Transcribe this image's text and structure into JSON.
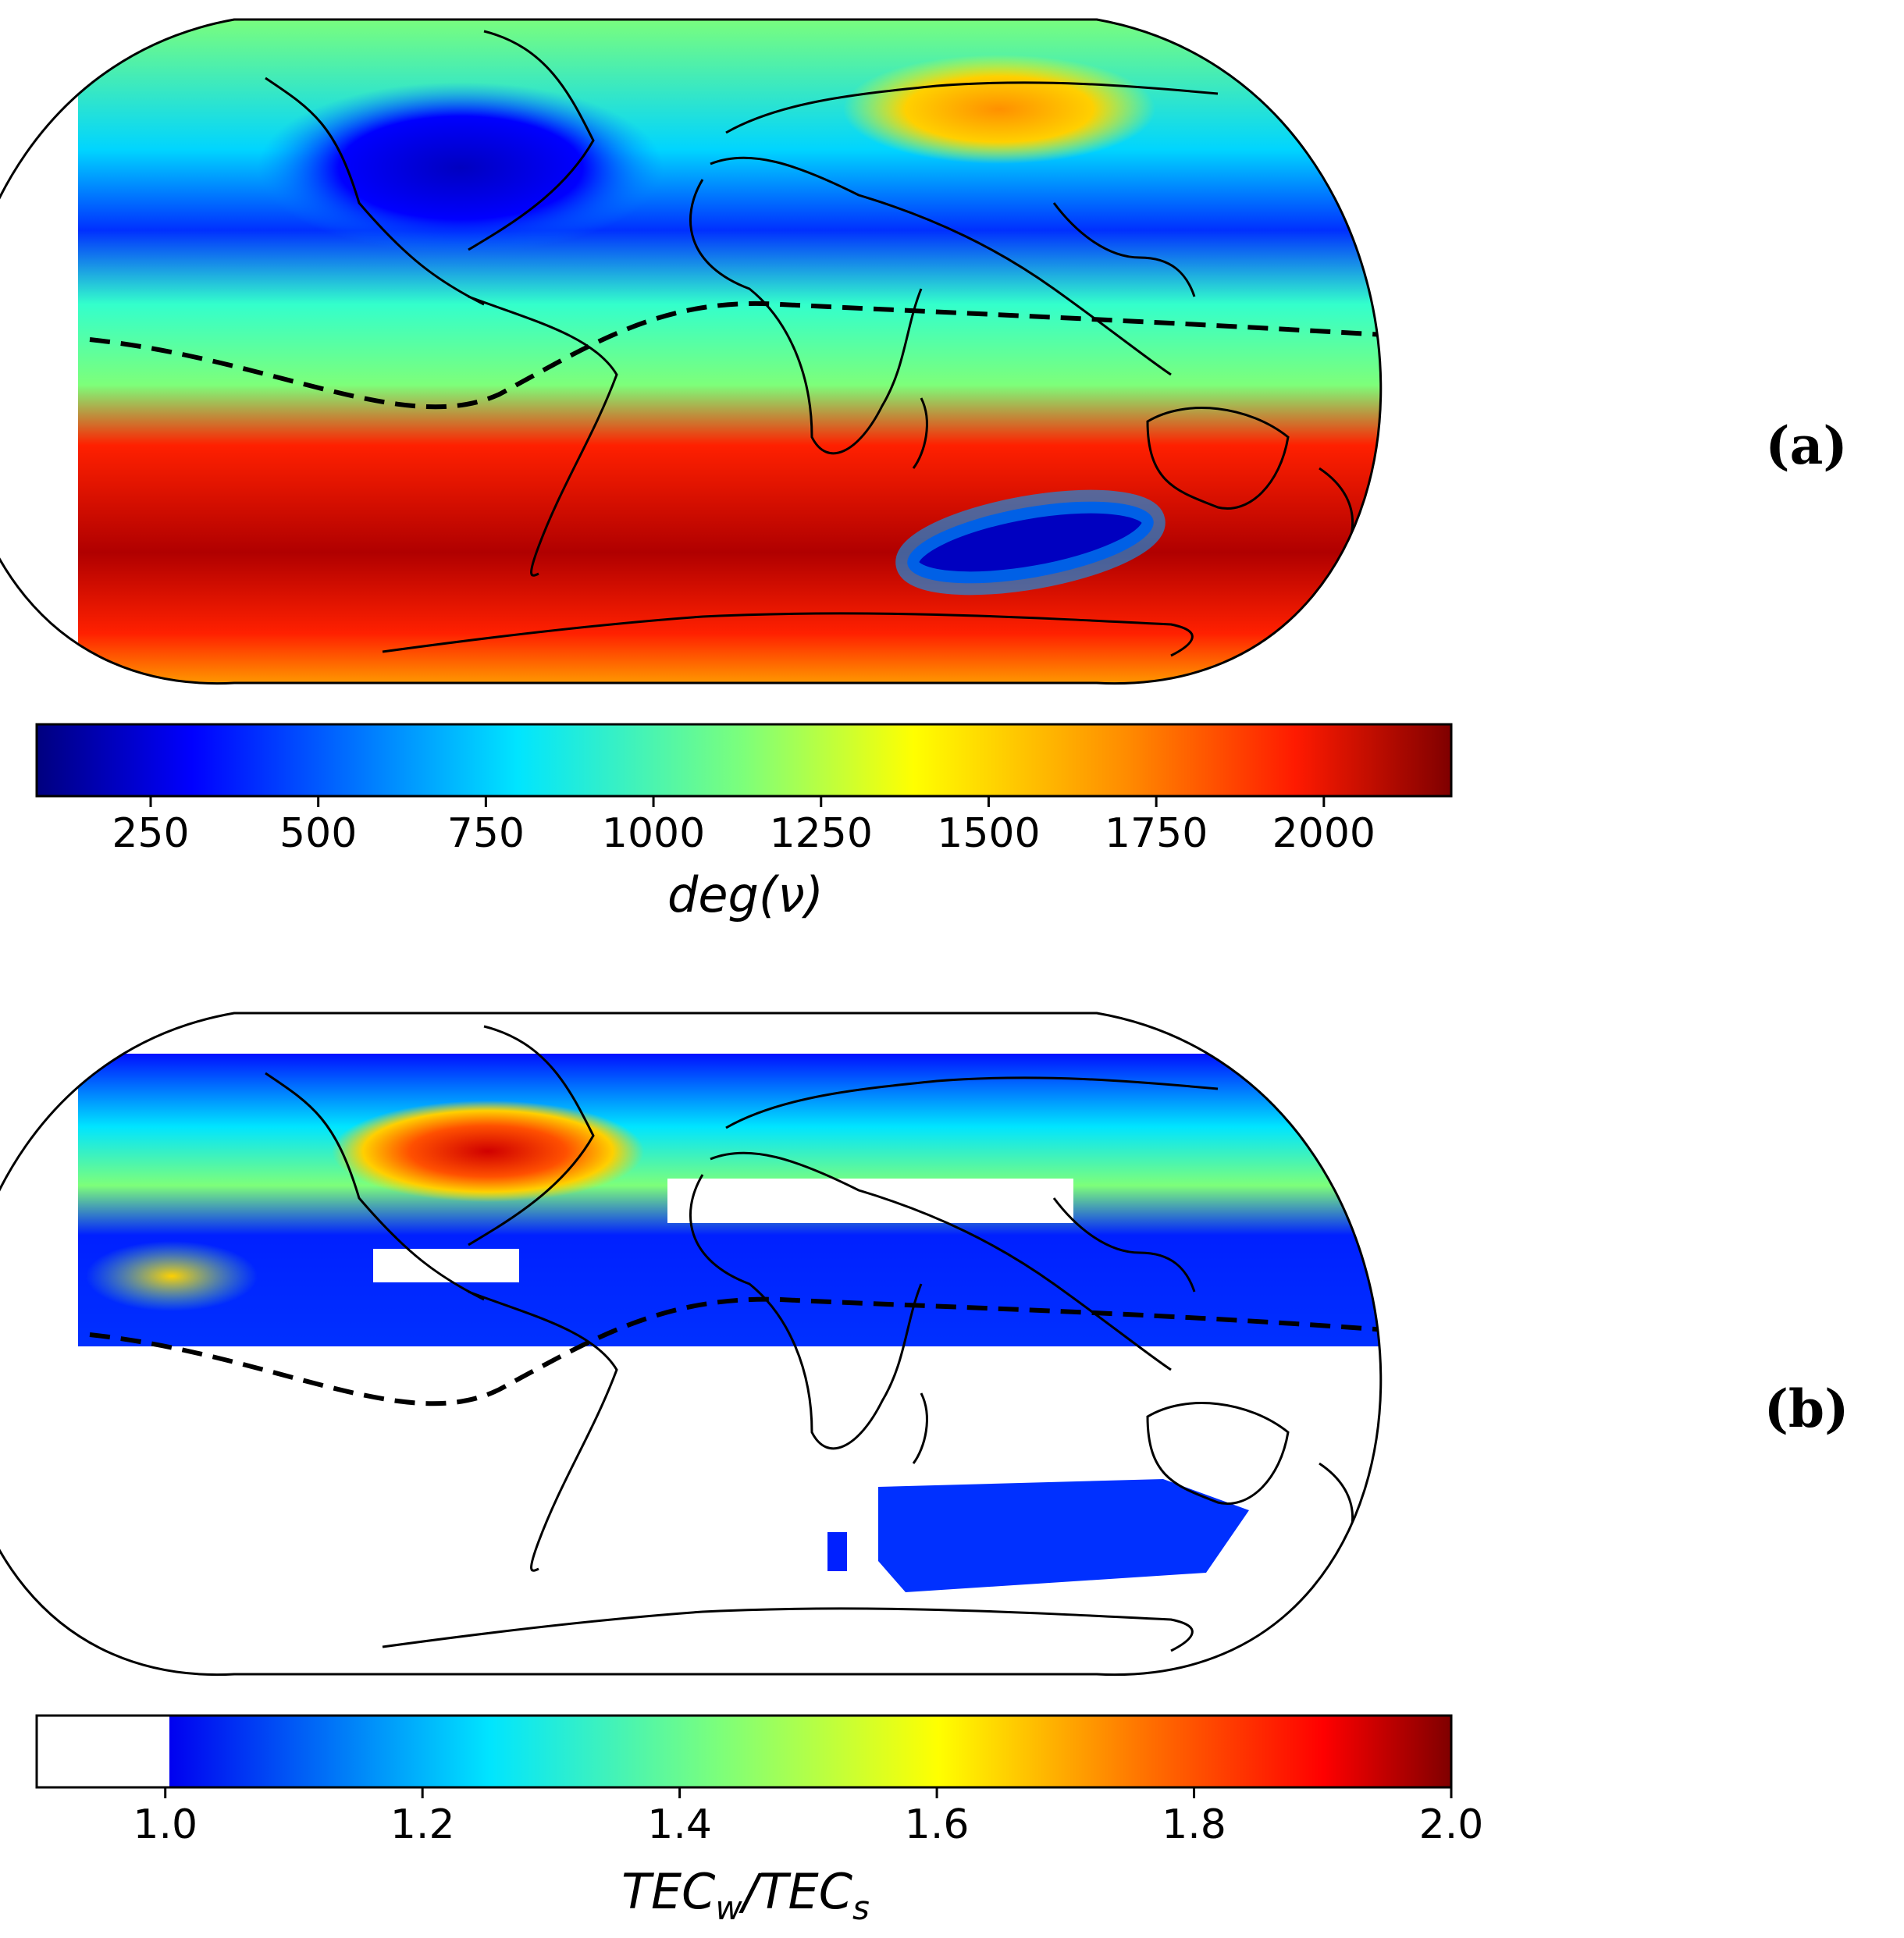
{
  "panels": [
    {
      "label": "(a)",
      "colorbar": {
        "label_main": "deg(",
        "label_sym": "ν",
        "label_end": ")",
        "ticks": [
          "250",
          "500",
          "750",
          "1000",
          "1250",
          "1500",
          "1750",
          "2000"
        ],
        "tick_values": [
          250,
          500,
          750,
          1000,
          1250,
          1500,
          1750,
          2000
        ],
        "vmin": 80,
        "vmax": 2190,
        "colormap": "jet"
      }
    },
    {
      "label": "(b)",
      "colorbar": {
        "label_base1": "TEC",
        "label_sub1": "w",
        "label_slash": "/",
        "label_base2": "TEC",
        "label_sub2": "s",
        "ticks": [
          "1.0",
          "1.2",
          "1.4",
          "1.6",
          "1.8",
          "2.0"
        ],
        "tick_values": [
          1.0,
          1.2,
          1.4,
          1.6,
          1.8,
          2.0
        ],
        "vmin": 0.9,
        "vmax": 2.0,
        "under_color": "#ffffff",
        "colormap": "jet"
      }
    }
  ],
  "colors": {
    "jet": [
      "#00007f",
      "#0000ff",
      "#007fff",
      "#00ffff",
      "#7fff7f",
      "#ffff00",
      "#ff7f00",
      "#ff0000",
      "#7f0000"
    ],
    "coast": "#000000",
    "magnetic_equator": "#000000"
  }
}
